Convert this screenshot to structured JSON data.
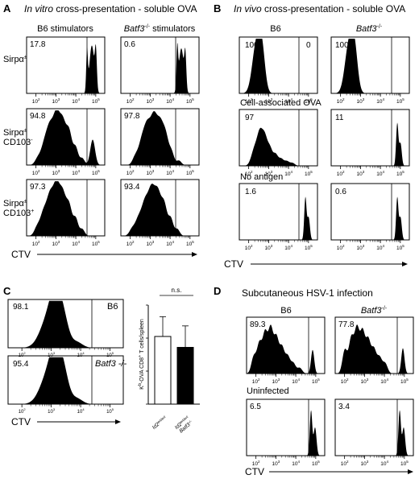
{
  "chart_data": [
    {
      "panel": "A",
      "type": "histogram",
      "title_italic": "In vitro",
      "title_rest": " cross-presentation - soluble OVA",
      "columns": [
        {
          "label": "B6 stimulators",
          "italic": ""
        },
        {
          "label": " stimulators",
          "italic": "Batf3",
          "sup": "-/-"
        }
      ],
      "rows": [
        {
          "label": "Sirpα",
          "sup": "±",
          "line2": ""
        },
        {
          "label": "Sirpα",
          "sup": "±",
          "line2": "CD103",
          "sup2": "-"
        },
        {
          "label": "Sirpα",
          "sup": "±",
          "line2": "CD103",
          "sup2": "+"
        }
      ],
      "percentages": [
        [
          "17.8",
          "0.6"
        ],
        [
          "94.8",
          "97.8"
        ],
        [
          "97.3",
          "93.4"
        ]
      ],
      "xaxis": "CTV",
      "xscale": "log",
      "ticks": [
        {
          "base": "10",
          "exp": "2"
        },
        {
          "base": "10",
          "exp": "3"
        },
        {
          "base": "10",
          "exp": "4"
        },
        {
          "base": "10",
          "exp": "5"
        }
      ]
    },
    {
      "panel": "B",
      "type": "histogram",
      "title_italic": "In vivo",
      "title_rest": " cross-presentation - soluble OVA",
      "columns": [
        {
          "label": "B6",
          "italic": ""
        },
        {
          "label": "",
          "italic": "Batf3",
          "sup": "-/-"
        }
      ],
      "row_labels": [
        "",
        "Cell-associated OVA",
        "No antigen"
      ],
      "percentages_left": [
        [
          "100",
          "0"
        ],
        [
          "97"
        ],
        [
          "1.6"
        ]
      ],
      "percentages_right": [
        [
          "100"
        ],
        [
          "11"
        ],
        [
          "0.6"
        ]
      ],
      "xaxis": "CTV",
      "xscale": "log",
      "ticks": [
        {
          "base": "10",
          "exp": "2"
        },
        {
          "base": "10",
          "exp": "3"
        },
        {
          "base": "10",
          "exp": "4"
        },
        {
          "base": "10",
          "exp": "5"
        }
      ]
    },
    {
      "panel": "C",
      "type": "histogram",
      "percentages": [
        "98.1",
        "95.4"
      ],
      "group_labels": [
        "B6",
        "Batf3 -/-"
      ],
      "xaxis": "CTV",
      "xscale": "log",
      "ticks": [
        {
          "base": "10",
          "exp": "2"
        },
        {
          "base": "10",
          "exp": "3"
        },
        {
          "base": "10",
          "exp": "4"
        },
        {
          "base": "10",
          "exp": "5"
        }
      ]
    },
    {
      "panel": "C",
      "type": "bar",
      "ylabel": "K",
      "ylabel_sup": "b",
      "ylabel_rest": "-OVA CD8",
      "ylabel_sup2": "+",
      "ylabel_end": "T cells/spleen",
      "categories": [
        {
          "label": "Id2",
          "sup": "ert/ert"
        },
        {
          "label": "Id2",
          "sup": "ert/ert",
          "line2": "Batf3",
          "sup2": "-/-"
        }
      ],
      "values": [
        2.05,
        1.72
      ],
      "errors": [
        0.6,
        0.65
      ],
      "colors": [
        "#ffffff",
        "#000000"
      ],
      "ylim": [
        0,
        3
      ],
      "annotation": "n.s."
    },
    {
      "panel": "D",
      "type": "histogram",
      "title": "Subcutaneous HSV-1 infection",
      "columns": [
        {
          "label": "B6",
          "italic": ""
        },
        {
          "label": "",
          "italic": "Batf3",
          "sup": "-/-"
        }
      ],
      "row_labels": [
        "",
        "Uninfected"
      ],
      "percentages": [
        [
          "89.3",
          "77.8"
        ],
        [
          "6.5",
          "3.4"
        ]
      ],
      "xaxis": "CTV",
      "xscale": "log",
      "ticks": [
        {
          "base": "10",
          "exp": "2"
        },
        {
          "base": "10",
          "exp": "3"
        },
        {
          "base": "10",
          "exp": "4"
        },
        {
          "base": "10",
          "exp": "5"
        }
      ]
    }
  ]
}
